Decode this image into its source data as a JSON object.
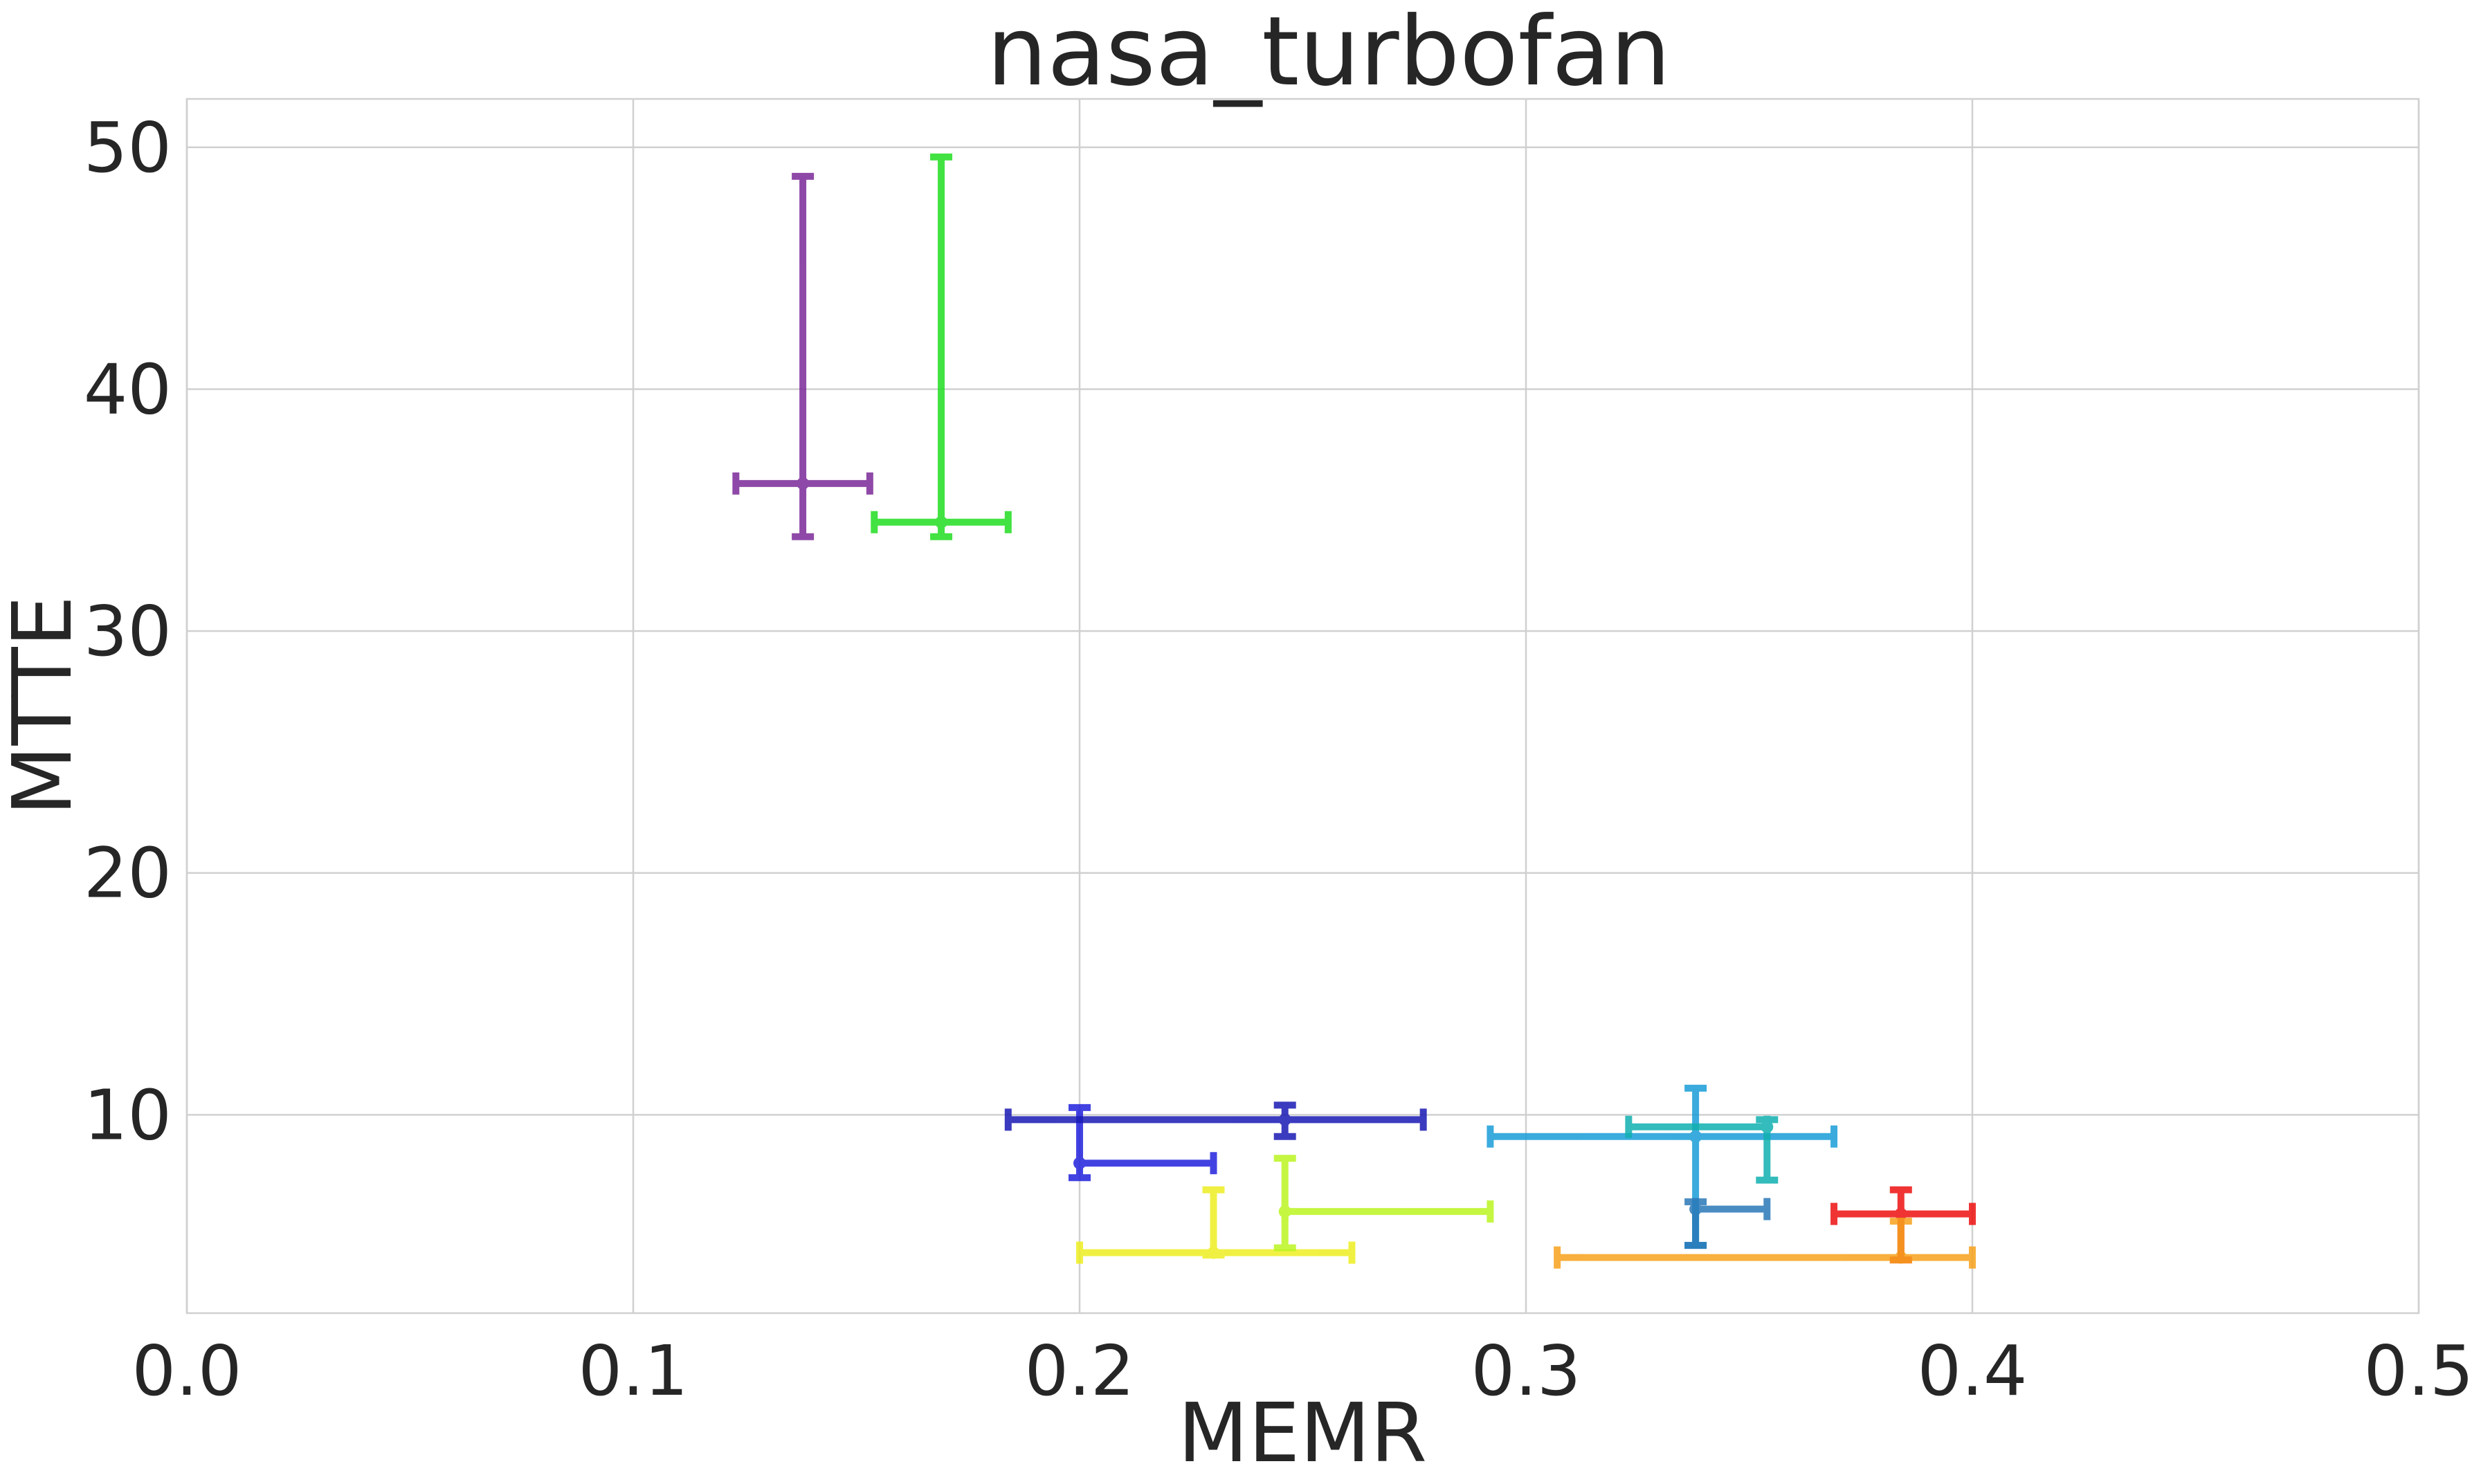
{
  "chart_data": {
    "type": "scatter",
    "title": "nasa_turbofan",
    "xlabel": "MEMR",
    "ylabel": "MTTE",
    "xlim": [
      0.0,
      0.5
    ],
    "ylim": [
      1.8,
      52.0
    ],
    "xticks": [
      "0.0",
      "0.1",
      "0.2",
      "0.3",
      "0.4",
      "0.5"
    ],
    "yticks": [
      "10",
      "20",
      "30",
      "40",
      "50"
    ],
    "grid": true,
    "legend": false,
    "points": [
      {
        "x": 0.138,
        "y": 36.1,
        "xerr": [
          0.123,
          0.153
        ],
        "yerr": [
          33.9,
          48.8
        ],
        "color": "#7b2a99"
      },
      {
        "x": 0.169,
        "y": 34.5,
        "xerr": [
          0.154,
          0.184
        ],
        "yerr": [
          33.9,
          49.6
        ],
        "color": "#22dd22"
      },
      {
        "x": 0.2,
        "y": 8.0,
        "xerr": [
          0.2,
          0.23
        ],
        "yerr": [
          7.4,
          10.3
        ],
        "color": "#2222dd"
      },
      {
        "x": 0.246,
        "y": 9.8,
        "xerr": [
          0.184,
          0.277
        ],
        "yerr": [
          9.1,
          10.4
        ],
        "color": "#1a1ab4"
      },
      {
        "x": 0.23,
        "y": 4.3,
        "xerr": [
          0.2,
          0.261
        ],
        "yerr": [
          4.2,
          6.9
        ],
        "color": "#eeee22"
      },
      {
        "x": 0.246,
        "y": 6.0,
        "xerr": [
          0.246,
          0.292
        ],
        "yerr": [
          4.5,
          8.2
        ],
        "color": "#bbf522"
      },
      {
        "x": 0.338,
        "y": 9.1,
        "xerr": [
          0.292,
          0.369
        ],
        "yerr": [
          4.6,
          11.1
        ],
        "color": "#1a9dd8"
      },
      {
        "x": 0.354,
        "y": 9.5,
        "xerr": [
          0.323,
          0.354
        ],
        "yerr": [
          7.3,
          9.8
        ],
        "color": "#11b0b0"
      },
      {
        "x": 0.338,
        "y": 6.1,
        "xerr": [
          0.338,
          0.354
        ],
        "yerr": [
          4.6,
          6.4
        ],
        "color": "#2a78b8"
      },
      {
        "x": 0.384,
        "y": 5.9,
        "xerr": [
          0.369,
          0.4
        ],
        "yerr": [
          4.0,
          6.9
        ],
        "color": "#ee1111"
      },
      {
        "x": 0.384,
        "y": 4.1,
        "xerr": [
          0.307,
          0.4
        ],
        "yerr": [
          4.0,
          5.6
        ],
        "color": "#f7a21c"
      }
    ]
  }
}
